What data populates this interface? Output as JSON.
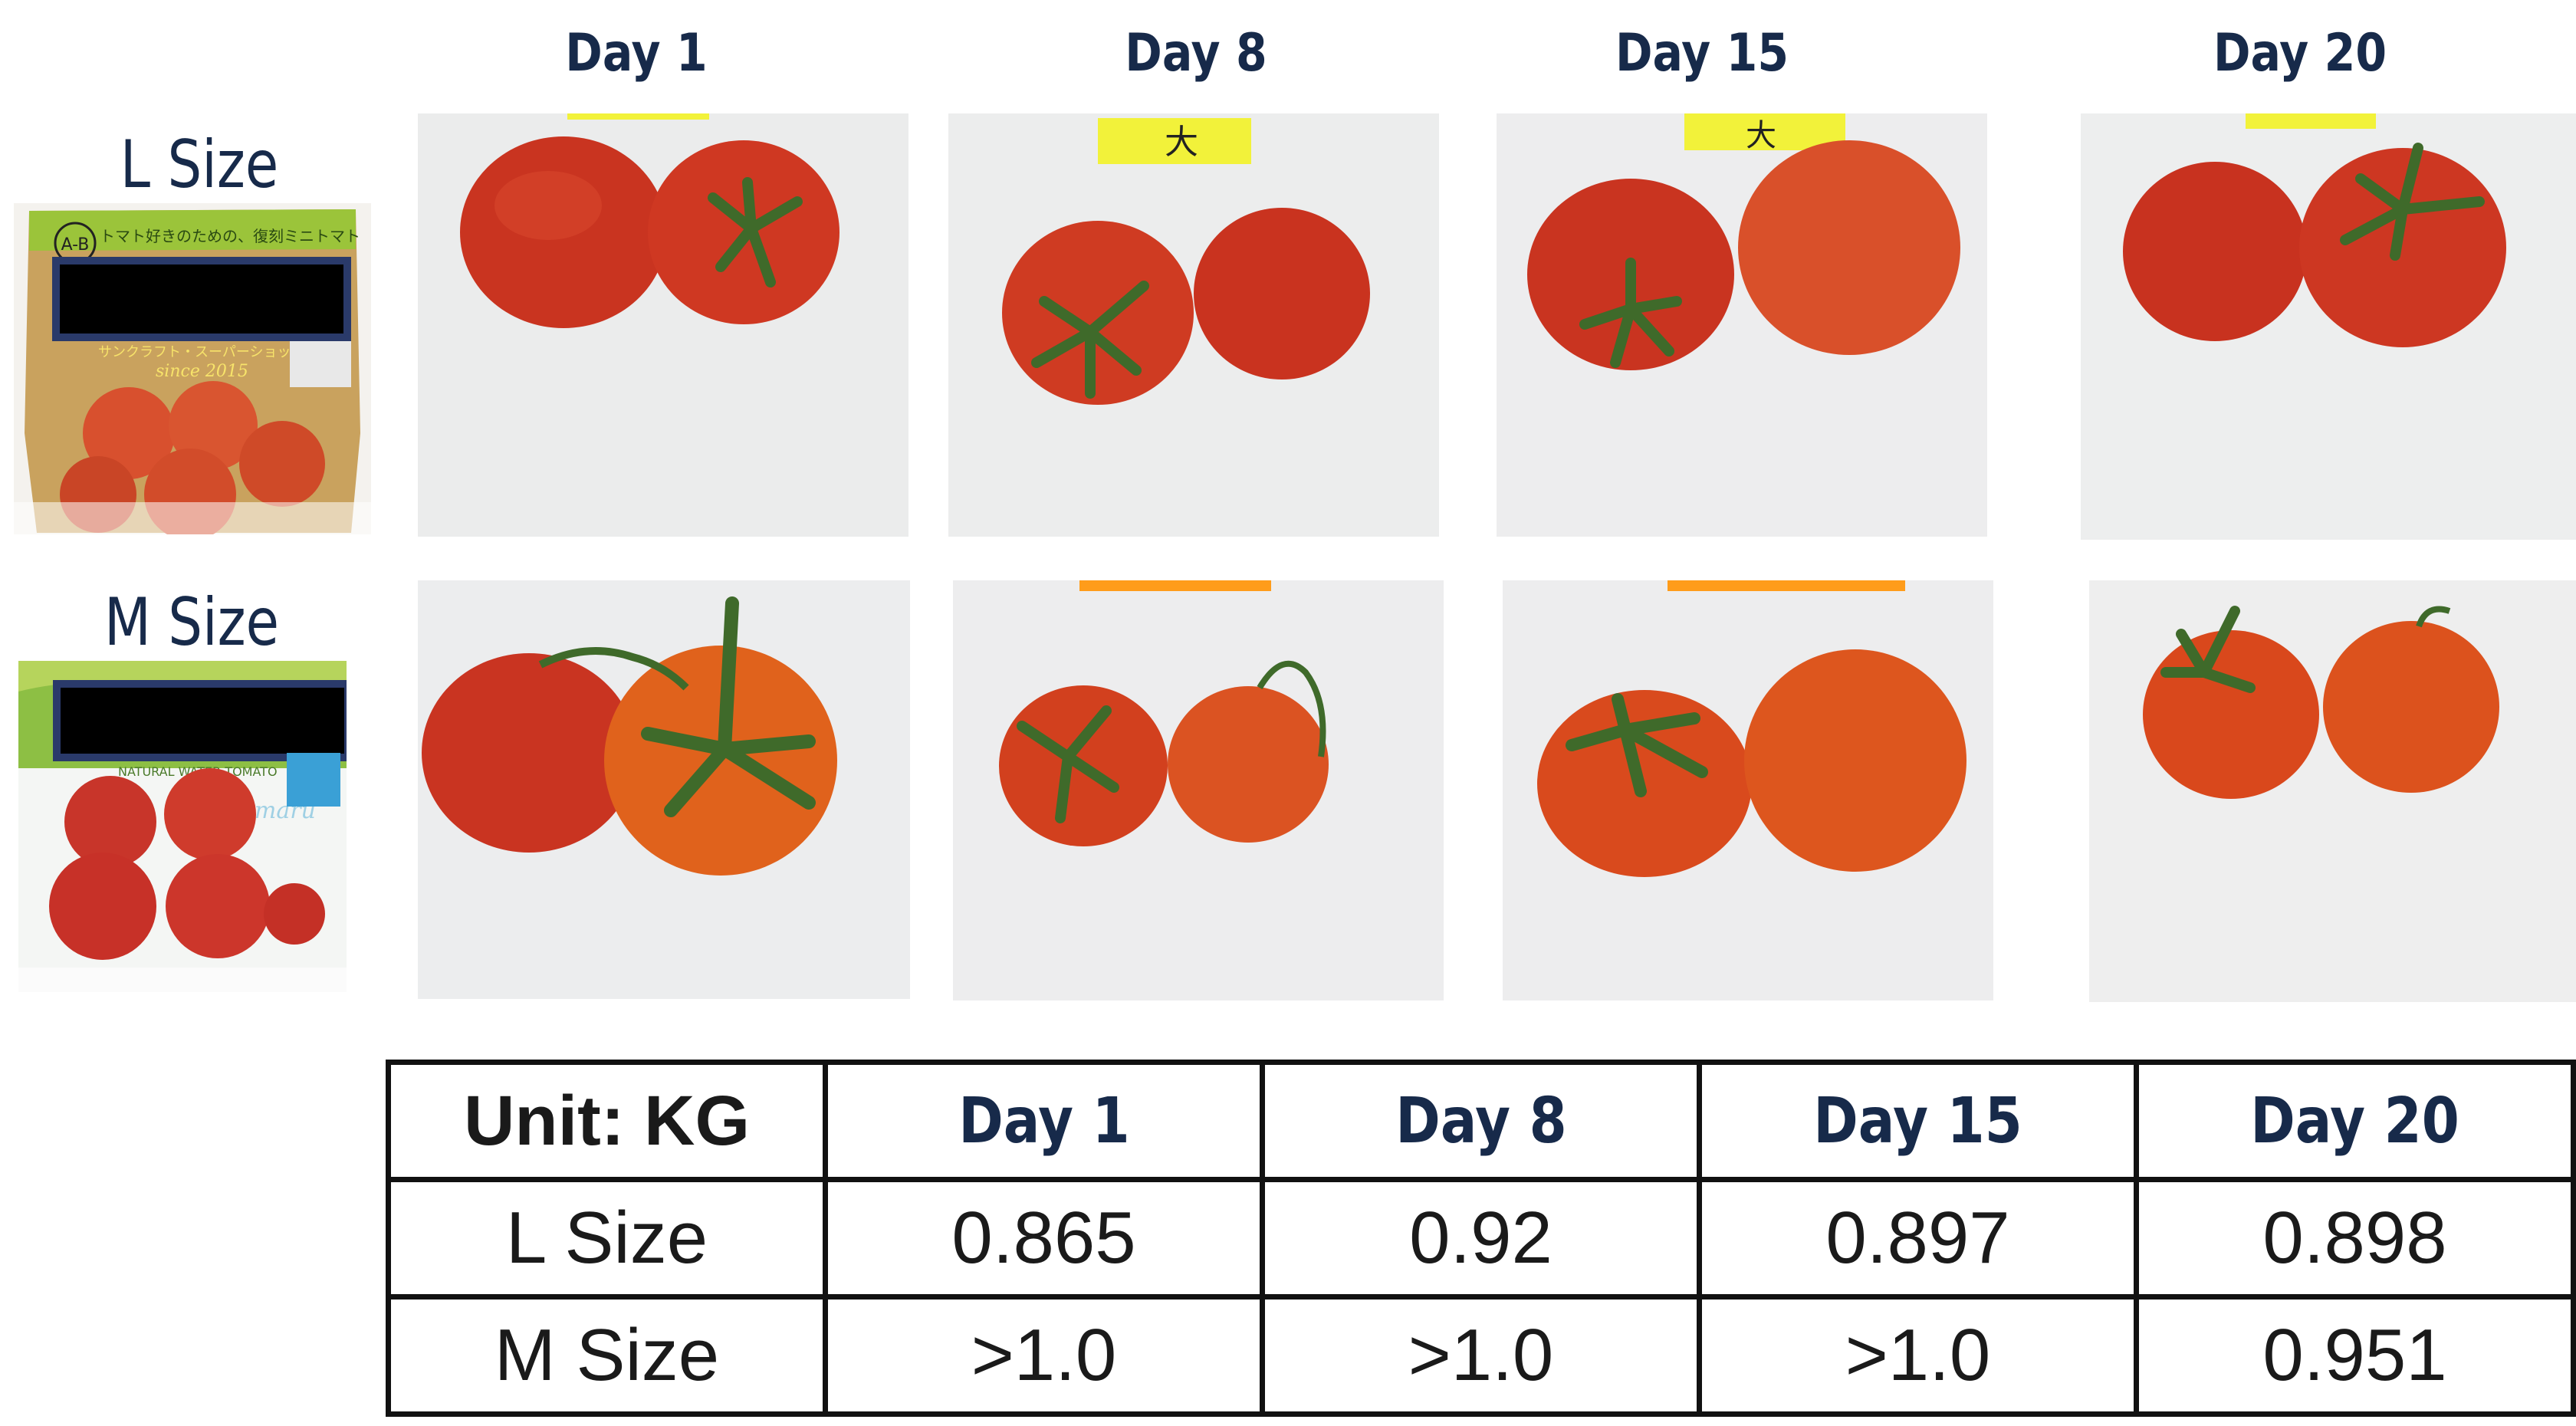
{
  "column_headers": [
    "Day 1",
    "Day 8",
    "Day 15",
    "Day 20"
  ],
  "rows": [
    {
      "label": "L Size"
    },
    {
      "label": "M Size"
    }
  ],
  "photo_notes": {
    "tag_text": "大"
  },
  "table": {
    "unit_label": "Unit: KG",
    "columns": [
      "Day 1",
      "Day 8",
      "Day 15",
      "Day 20"
    ],
    "rows": [
      {
        "label": "L Size",
        "values": [
          "0.865",
          "0.92",
          "0.897",
          "0.898"
        ]
      },
      {
        "label": "M Size",
        "values": [
          ">1.0",
          ">1.0",
          ">1.0",
          "0.951"
        ]
      }
    ]
  },
  "package_texts": {
    "l_badge": "A-B",
    "l_line1": "トマト好きのための、復刻ミニトマト",
    "l_line2": "サンクラフト・スーパーショットマト",
    "l_since": "since 2015",
    "m_line": "NATURAL WATER TOMATO",
    "m_script": "amaru"
  },
  "colors": {
    "heading": "#172a4a",
    "tomato_red": "#cc2a1a",
    "tomato_orange": "#e0521c",
    "stem_green": "#3f6a2a",
    "tag_yellow": "#f2f23a",
    "tag_orange": "#ff9c1a",
    "redaction": "#000000"
  }
}
